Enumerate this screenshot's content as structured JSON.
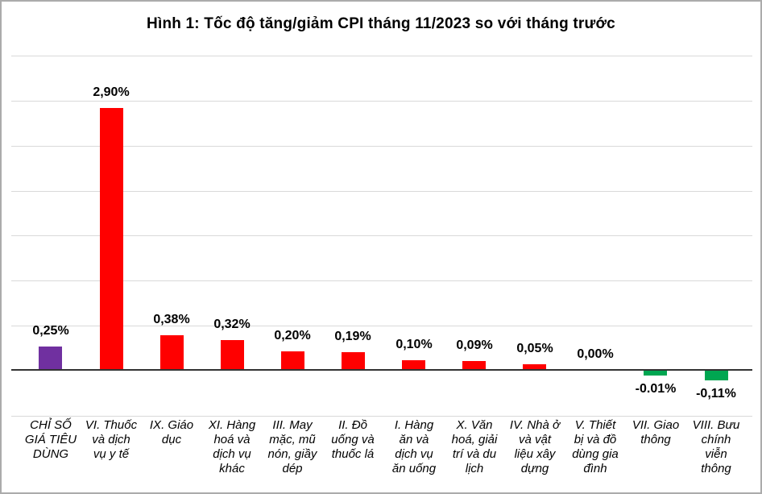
{
  "title": "Hình 1: Tốc độ tăng/giảm CPI tháng 11/2023 so với tháng trước",
  "chart_data": {
    "type": "bar",
    "title": "Hình 1: Tốc độ tăng/giảm CPI tháng 11/2023 so với tháng trước",
    "categories": [
      "CHỈ SỐ\nGIÁ TIÊU\nDÙNG",
      "VI. Thuốc\nvà dịch\nvụ y tế",
      "IX. Giáo\ndục",
      "XI. Hàng\nhoá và\ndịch vụ\nkhác",
      "III. May\nmặc, mũ\nnón, giầy\ndép",
      "II. Đồ\nuống và\nthuốc lá",
      "I. Hàng\năn và\ndịch vụ\năn uống",
      "X. Văn\nhoá, giải\ntrí và du\nlịch",
      "IV. Nhà ở\nvà vật\nliệu xây\ndựng",
      "V. Thiết\nbị và đồ\ndùng gia\nđình",
      "VII. Giao\nthông",
      "VIII. Bưu\nchính\nviễn\nthông"
    ],
    "values": [
      0.25,
      2.9,
      0.38,
      0.32,
      0.2,
      0.19,
      0.1,
      0.09,
      0.05,
      0.0,
      -0.01,
      -0.11
    ],
    "value_labels": [
      "0,25%",
      "2,90%",
      "0,38%",
      "0,32%",
      "0,20%",
      "0,19%",
      "0,10%",
      "0,09%",
      "0,05%",
      "0,00%",
      "-0.01%",
      "-0,11%"
    ],
    "bar_colors": [
      "#7030A0",
      "#FF0000",
      "#FF0000",
      "#FF0000",
      "#FF0000",
      "#FF0000",
      "#FF0000",
      "#FF0000",
      "#FF0000",
      "#FF0000",
      "#00A651",
      "#00A651"
    ],
    "xlabel": "",
    "ylabel": "",
    "unit": "%",
    "ylim": [
      -0.5,
      3.5
    ],
    "gridline_step": 0.5,
    "grid": true,
    "legend": false
  },
  "colors": {
    "accent_purple": "#7030A0",
    "accent_red": "#FF0000",
    "accent_green": "#00A651",
    "gridline": "#D9D9D9",
    "axis": "#333333",
    "frame_border": "#ABABAB",
    "text": "#000000"
  }
}
